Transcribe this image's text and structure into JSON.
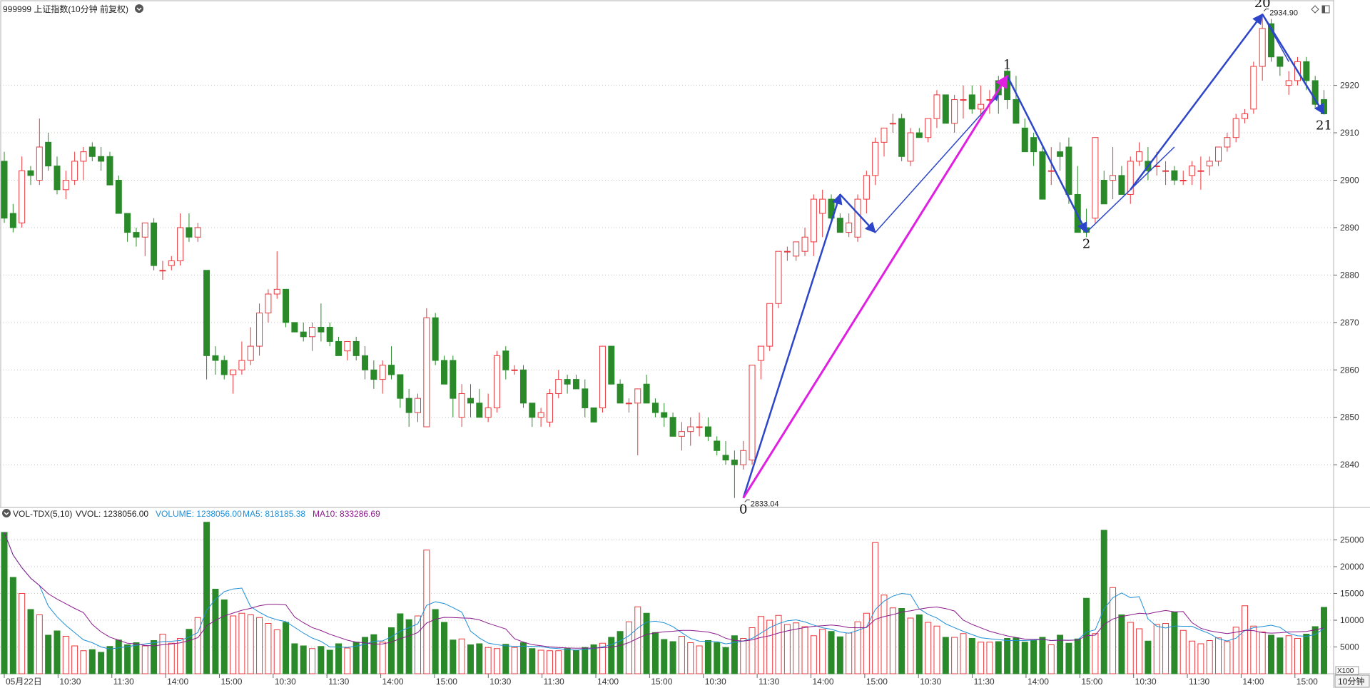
{
  "header": {
    "title": "999999 上证指数(10分钟 前复权)",
    "right_icons": [
      "diamond-icon",
      "window-icon"
    ]
  },
  "volume_header": {
    "indicator": "VOL-TDX(5,10)",
    "vvol": "VVOL: 1238056.00",
    "volume": "VOLUME: 1238056.00",
    "ma5": "MA5: 818185.38",
    "ma10": "MA10: 833286.69",
    "multiplier": "X100"
  },
  "period_button": "10分钟",
  "colors": {
    "up": "#e8383d",
    "down": "#2a8a2a",
    "ma5": "#1f8fd6",
    "ma10": "#8b1a8b",
    "wave_blue": "#2d45c8",
    "wave_magenta": "#e020e0",
    "grid": "#c8c8c8"
  },
  "chart_data": {
    "type": "candlestick",
    "period": "10分钟",
    "price_ticks": [
      "2840",
      "2850",
      "2860",
      "2870",
      "2880",
      "2890",
      "2900",
      "2910",
      "2920"
    ],
    "ylim": [
      2831,
      2938
    ],
    "volume_ticks": [
      "5000",
      "10000",
      "15000",
      "20000",
      "25000"
    ],
    "volume_ylim": [
      0,
      28800
    ],
    "time_labels": [
      "05月22日",
      "10:30",
      "11:30",
      "14:00",
      "15:00",
      "10:30",
      "11:30",
      "14:00",
      "15:00",
      "10:30",
      "11:30",
      "14:00",
      "15:00",
      "10:30",
      "11:30",
      "14:00",
      "15:00",
      "10:30",
      "11:30",
      "14:00",
      "15:00",
      "10:30",
      "11:30",
      "14:00",
      "15:00"
    ],
    "candles": [
      [
        2904,
        2906,
        2891,
        2892,
        26400
      ],
      [
        2893,
        2895,
        2889,
        2890,
        18000
      ],
      [
        2891,
        2905,
        2890,
        2902,
        15000
      ],
      [
        2902,
        2903,
        2899,
        2901,
        12000
      ],
      [
        2900,
        2913,
        2899,
        2907,
        11000
      ],
      [
        2908,
        2910,
        2902,
        2903,
        7200
      ],
      [
        2903,
        2905,
        2897,
        2898,
        8000
      ],
      [
        2898,
        2902,
        2896,
        2900,
        7000
      ],
      [
        2900,
        2906,
        2899,
        2904,
        5200
      ],
      [
        2904,
        2907,
        2900,
        2906,
        4300
      ],
      [
        2907,
        2908,
        2904,
        2905,
        4500
      ],
      [
        2905,
        2907,
        2902,
        2904,
        4000
      ],
      [
        2905,
        2906,
        2899,
        2899,
        5100
      ],
      [
        2900,
        2901,
        2893,
        2893,
        6300
      ],
      [
        2893,
        2893,
        2887,
        2889,
        5400
      ],
      [
        2889,
        2890,
        2886,
        2888,
        5800
      ],
      [
        2888,
        2891,
        2884,
        2891,
        5200
      ],
      [
        2891,
        2892,
        2881,
        2882,
        6200
      ],
      [
        2881,
        2883,
        2879,
        2881,
        7400
      ],
      [
        2882,
        2884,
        2881,
        2883,
        5700
      ],
      [
        2883,
        2893,
        2882,
        2890,
        6600
      ],
      [
        2890,
        2893,
        2887,
        2888,
        8300
      ],
      [
        2888,
        2891,
        2887,
        2890,
        10500
      ],
      [
        2881,
        2881,
        2858,
        2863,
        28300
      ],
      [
        2863,
        2865,
        2859,
        2862,
        15800
      ],
      [
        2862,
        2863,
        2858,
        2859,
        13800
      ],
      [
        2859,
        2860,
        2855,
        2860,
        10800
      ],
      [
        2860,
        2866,
        2859,
        2862,
        11300
      ],
      [
        2862,
        2869,
        2861,
        2865,
        11000
      ],
      [
        2865,
        2874,
        2863,
        2872,
        10500
      ],
      [
        2872,
        2877,
        2870,
        2876,
        9400
      ],
      [
        2876,
        2885,
        2875,
        2877,
        8200
      ],
      [
        2877,
        2877,
        2869,
        2870,
        9600
      ],
      [
        2870,
        2870,
        2868,
        2868,
        5600
      ],
      [
        2868,
        2870,
        2866,
        2867,
        5200
      ],
      [
        2867,
        2870,
        2864,
        2869,
        4700
      ],
      [
        2869,
        2874,
        2866,
        2868,
        5100
      ],
      [
        2869,
        2870,
        2865,
        2866,
        4400
      ],
      [
        2866,
        2867,
        2863,
        2863,
        5600
      ],
      [
        2864,
        2866,
        2862,
        2866,
        4800
      ],
      [
        2866,
        2867,
        2862,
        2863,
        5900
      ],
      [
        2863,
        2865,
        2858,
        2860,
        6800
      ],
      [
        2860,
        2862,
        2856,
        2858,
        7300
      ],
      [
        2858,
        2862,
        2855,
        2861,
        5900
      ],
      [
        2861,
        2865,
        2858,
        2859,
        8600
      ],
      [
        2859,
        2859,
        2852,
        2854,
        11200
      ],
      [
        2854,
        2856,
        2848,
        2851,
        10100
      ],
      [
        2851,
        2855,
        2849,
        2854,
        10800
      ],
      [
        2848,
        2873,
        2848,
        2871,
        23100
      ],
      [
        2871,
        2872,
        2861,
        2862,
        12000
      ],
      [
        2862,
        2863,
        2857,
        2857,
        9600
      ],
      [
        2862,
        2863,
        2850,
        2854,
        6300
      ],
      [
        2850,
        2857,
        2848,
        2855,
        6500
      ],
      [
        2854,
        2857,
        2850,
        2853,
        5400
      ],
      [
        2853,
        2856,
        2850,
        2850,
        5600
      ],
      [
        2850,
        2855,
        2849,
        2852,
        4900
      ],
      [
        2852,
        2864,
        2851,
        2863,
        4700
      ],
      [
        2864,
        2865,
        2858,
        2860,
        5500
      ],
      [
        2860,
        2861,
        2859,
        2860,
        4900
      ],
      [
        2860,
        2861,
        2852,
        2853,
        5800
      ],
      [
        2853,
        2853,
        2848,
        2850,
        4700
      ],
      [
        2850,
        2852,
        2848,
        2851,
        4400
      ],
      [
        2849,
        2856,
        2848,
        2855,
        4300
      ],
      [
        2855,
        2860,
        2854,
        2858,
        4300
      ],
      [
        2858,
        2859,
        2855,
        2857,
        4700
      ],
      [
        2858,
        2859,
        2856,
        2856,
        4400
      ],
      [
        2856,
        2858,
        2850,
        2852,
        4900
      ],
      [
        2852,
        2852,
        2849,
        2849,
        5400
      ],
      [
        2852,
        2865,
        2851,
        2865,
        5700
      ],
      [
        2865,
        2865,
        2857,
        2857,
        6800
      ],
      [
        2857,
        2858,
        2853,
        2853,
        7900
      ],
      [
        2853,
        2854,
        2851,
        2853,
        9700
      ],
      [
        2853,
        2856,
        2842,
        2856,
        12500
      ],
      [
        2857,
        2859,
        2853,
        2853,
        11300
      ],
      [
        2853,
        2854,
        2850,
        2851,
        7700
      ],
      [
        2851,
        2853,
        2848,
        2850,
        6400
      ],
      [
        2850,
        2851,
        2846,
        2846,
        6000
      ],
      [
        2846,
        2849,
        2843,
        2847,
        7000
      ],
      [
        2847,
        2850,
        2844,
        2848,
        5800
      ],
      [
        2848,
        2851,
        2846,
        2848,
        5200
      ],
      [
        2848,
        2850,
        2845,
        2846,
        6200
      ],
      [
        2845,
        2846,
        2842,
        2843,
        5800
      ],
      [
        2842,
        2845,
        2840,
        2841,
        4900
      ],
      [
        2841,
        2843,
        2833,
        2840,
        7100
      ],
      [
        2840,
        2845,
        2839,
        2843,
        6600
      ],
      [
        2841,
        2861,
        2840,
        2861,
        8600
      ],
      [
        2862,
        2865,
        2858,
        2865,
        10700
      ],
      [
        2865,
        2874,
        2864,
        2874,
        10000
      ],
      [
        2874,
        2885,
        2873,
        2885,
        10900
      ],
      [
        2885,
        2886,
        2883,
        2885,
        9200
      ],
      [
        2884,
        2887,
        2883,
        2887,
        9500
      ],
      [
        2885,
        2890,
        2884,
        2888,
        8800
      ],
      [
        2887,
        2897,
        2884,
        2896,
        7100
      ],
      [
        2893,
        2898,
        2888,
        2896,
        8300
      ],
      [
        2896,
        2897,
        2891,
        2892,
        7900
      ],
      [
        2892,
        2893,
        2889,
        2889,
        6900
      ],
      [
        2889,
        2893,
        2888,
        2891,
        7600
      ],
      [
        2888,
        2897,
        2887,
        2896,
        9700
      ],
      [
        2896,
        2902,
        2893,
        2901,
        11300
      ],
      [
        2901,
        2909,
        2899,
        2908,
        24500
      ],
      [
        2908,
        2911,
        2905,
        2911,
        14700
      ],
      [
        2912,
        2914,
        2910,
        2912,
        12300
      ],
      [
        2913,
        2914,
        2904,
        2905,
        12200
      ],
      [
        2904,
        2911,
        2903,
        2910,
        10400
      ],
      [
        2910,
        2911,
        2909,
        2909,
        11000
      ],
      [
        2909,
        2913,
        2908,
        2913,
        9600
      ],
      [
        2913,
        2919,
        2911,
        2918,
        8900
      ],
      [
        2918,
        2918,
        2912,
        2912,
        6800
      ],
      [
        2912,
        2918,
        2910,
        2917,
        6800
      ],
      [
        2917,
        2920,
        2913,
        2917,
        7500
      ],
      [
        2918,
        2920,
        2914,
        2915,
        6600
      ],
      [
        2915,
        2920,
        2913,
        2916,
        5900
      ],
      [
        2917,
        2919,
        2914,
        2917,
        5900
      ],
      [
        2921,
        2922,
        2914,
        2918,
        6000
      ],
      [
        2923,
        2924,
        2915,
        2917,
        6600
      ],
      [
        2917,
        2922,
        2912,
        2912,
        6700
      ],
      [
        2911,
        2913,
        2906,
        2906,
        5900
      ],
      [
        2909,
        2910,
        2903,
        2906,
        6200
      ],
      [
        2906,
        2907,
        2896,
        2896,
        6800
      ],
      [
        2902,
        2907,
        2899,
        2902,
        5400
      ],
      [
        2906,
        2908,
        2902,
        2905,
        7200
      ],
      [
        2907,
        2909,
        2895,
        2897,
        5700
      ],
      [
        2897,
        2903,
        2890,
        2889,
        6500
      ],
      [
        2890,
        2894,
        2888,
        2889,
        14100
      ],
      [
        2892,
        2909,
        2891,
        2909,
        7500
      ],
      [
        2900,
        2902,
        2896,
        2895,
        26800
      ],
      [
        2900,
        2907,
        2896,
        2901,
        16100
      ],
      [
        2901,
        2903,
        2897,
        2897,
        11000
      ],
      [
        2897,
        2905,
        2895,
        2904,
        9600
      ],
      [
        2904,
        2908,
        2903,
        2906,
        8400
      ],
      [
        2904,
        2907,
        2900,
        2902,
        6100
      ],
      [
        2903,
        2906,
        2901,
        2903,
        9200
      ],
      [
        2902,
        2904,
        2899,
        2902,
        9400
      ],
      [
        2902,
        2903,
        2899,
        2900,
        11500
      ],
      [
        2900,
        2902,
        2899,
        2900,
        8100
      ],
      [
        2901,
        2904,
        2899,
        2903,
        6100
      ],
      [
        2902,
        2905,
        2898,
        2902,
        5600
      ],
      [
        2903,
        2905,
        2901,
        2904,
        6200
      ],
      [
        2904,
        2907,
        2903,
        2907,
        6700
      ],
      [
        2907,
        2910,
        2906,
        2909,
        6000
      ],
      [
        2909,
        2914,
        2908,
        2913,
        8700
      ],
      [
        2913,
        2915,
        2912,
        2914,
        12700
      ],
      [
        2915,
        2925,
        2914,
        2924,
        8900
      ],
      [
        2924,
        2935,
        2921,
        2932,
        7800
      ],
      [
        2933,
        2934,
        2925,
        2926,
        7200
      ],
      [
        2926,
        2926,
        2922,
        2924,
        6700
      ],
      [
        2920,
        2923,
        2918,
        2921,
        7100
      ],
      [
        2921,
        2926,
        2920,
        2925,
        6600
      ],
      [
        2925,
        2926,
        2919,
        2921,
        7400
      ],
      [
        2921,
        2922,
        2915,
        2916,
        8800
      ],
      [
        2917,
        2919,
        2914,
        2914,
        12400
      ]
    ],
    "price_markers": [
      {
        "label": "2833.04",
        "index": 84,
        "price": 2833.04,
        "side": "below"
      },
      {
        "label": "2934.90",
        "index": 143,
        "price": 2934.9,
        "side": "above"
      }
    ],
    "wave_labels": [
      {
        "label": "0",
        "index": 84,
        "price": 2833
      },
      {
        "label": "1",
        "index": 114,
        "price": 2922
      },
      {
        "label": "2",
        "index": 123,
        "price": 2889
      },
      {
        "label": "20",
        "index": 143,
        "price": 2935
      },
      {
        "label": "21",
        "index": 150,
        "price": 2914
      }
    ],
    "wave_segments": [
      {
        "color": "blue",
        "width": 2.5,
        "arrow": true,
        "from": [
          84,
          2833
        ],
        "to": [
          95,
          2897
        ]
      },
      {
        "color": "blue",
        "width": 2.5,
        "arrow": true,
        "from": [
          95,
          2897
        ],
        "to": [
          99,
          2889
        ]
      },
      {
        "color": "blue",
        "width": 1.5,
        "arrow": true,
        "from": [
          99,
          2889
        ],
        "to": [
          113,
          2918
        ]
      },
      {
        "color": "blue",
        "width": 2.5,
        "arrow": true,
        "from": [
          114,
          2922
        ],
        "to": [
          123,
          2889
        ]
      },
      {
        "color": "blue",
        "width": 1.5,
        "arrow": false,
        "from": [
          123,
          2889
        ],
        "to": [
          133,
          2907
        ]
      },
      {
        "color": "blue",
        "width": 2.5,
        "arrow": true,
        "from": [
          128,
          2898
        ],
        "to": [
          143,
          2935
        ]
      },
      {
        "color": "blue",
        "width": 2.5,
        "arrow": true,
        "from": [
          143,
          2935
        ],
        "to": [
          150,
          2914
        ]
      },
      {
        "color": "blue",
        "width": 1.5,
        "arrow": false,
        "from": [
          143,
          2935
        ],
        "to": [
          146,
          2925
        ]
      },
      {
        "color": "blue",
        "width": 1.5,
        "arrow": false,
        "from": [
          95,
          2897
        ],
        "to": [
          97,
          2893
        ]
      },
      {
        "color": "magenta",
        "width": 3,
        "arrow": true,
        "from": [
          84,
          2833
        ],
        "to": [
          114,
          2922
        ]
      }
    ]
  }
}
